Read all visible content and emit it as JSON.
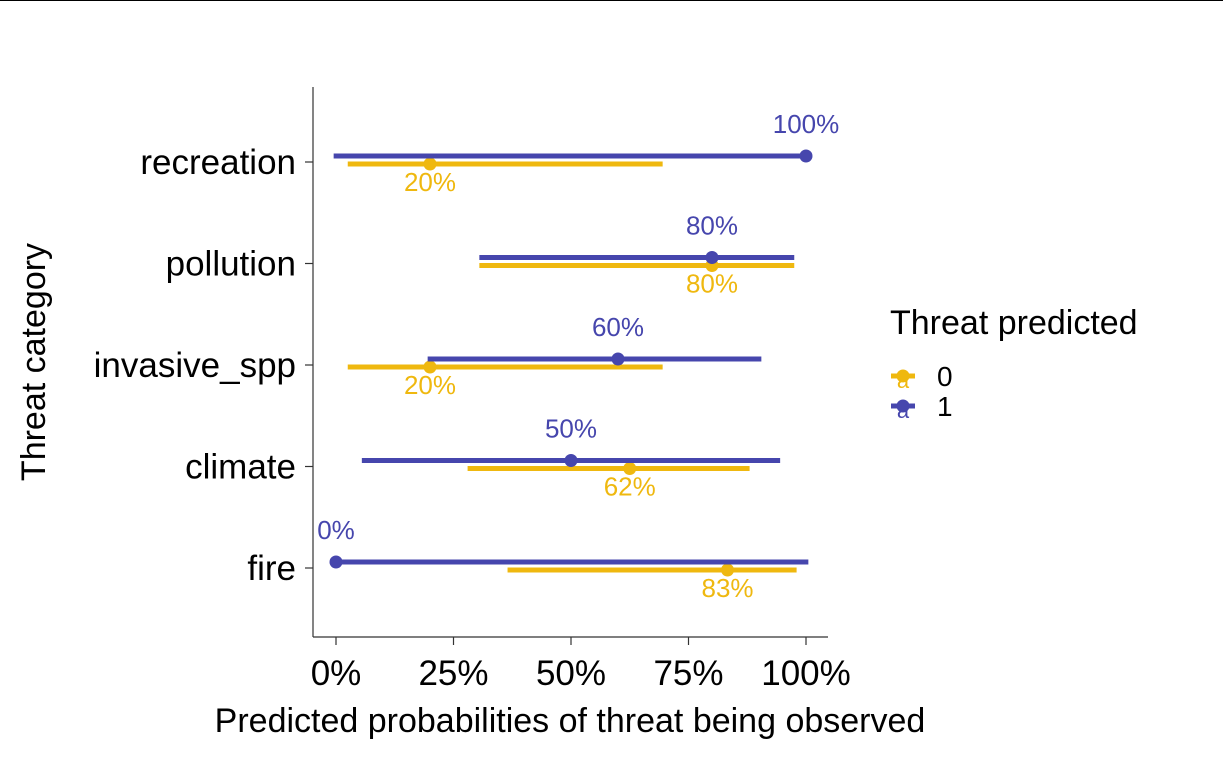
{
  "chart_data": {
    "type": "pointrange",
    "title": "",
    "xlabel": "Predicted probabilities of threat being observed",
    "ylabel": "Threat category",
    "xlim": [
      -0.05,
      1.05
    ],
    "x_ticks": [
      0,
      0.25,
      0.5,
      0.75,
      1.0
    ],
    "x_tick_labels": [
      "0%",
      "25%",
      "50%",
      "75%",
      "100%"
    ],
    "categories": [
      "recreation",
      "pollution",
      "invasive_spp",
      "climate",
      "fire"
    ],
    "legend": {
      "title": "Threat predicted",
      "position": "right",
      "entries": [
        {
          "label": "0",
          "glyph": "a"
        },
        {
          "label": "1",
          "glyph": "a"
        }
      ]
    },
    "series": [
      {
        "name": "0",
        "color": "#EFB80F",
        "points": [
          {
            "category": "recreation",
            "estimate": 0.2,
            "low": 0.025,
            "high": 0.695,
            "label": "20%"
          },
          {
            "category": "pollution",
            "estimate": 0.8,
            "low": 0.305,
            "high": 0.975,
            "label": "80%"
          },
          {
            "category": "invasive_spp",
            "estimate": 0.2,
            "low": 0.025,
            "high": 0.695,
            "label": "20%"
          },
          {
            "category": "climate",
            "estimate": 0.625,
            "low": 0.28,
            "high": 0.88,
            "label": "62%"
          },
          {
            "category": "fire",
            "estimate": 0.833,
            "low": 0.365,
            "high": 0.98,
            "label": "83%"
          }
        ]
      },
      {
        "name": "1",
        "color": "#4646AD",
        "points": [
          {
            "category": "recreation",
            "estimate": 1.0,
            "low": -0.005,
            "high": 1.0,
            "label": "100%"
          },
          {
            "category": "pollution",
            "estimate": 0.8,
            "low": 0.305,
            "high": 0.975,
            "label": "80%"
          },
          {
            "category": "invasive_spp",
            "estimate": 0.6,
            "low": 0.195,
            "high": 0.905,
            "label": "60%"
          },
          {
            "category": "climate",
            "estimate": 0.5,
            "low": 0.055,
            "high": 0.945,
            "label": "50%"
          },
          {
            "category": "fire",
            "estimate": 0.0,
            "low": 0.0,
            "high": 1.005,
            "label": "0%"
          }
        ]
      }
    ]
  }
}
